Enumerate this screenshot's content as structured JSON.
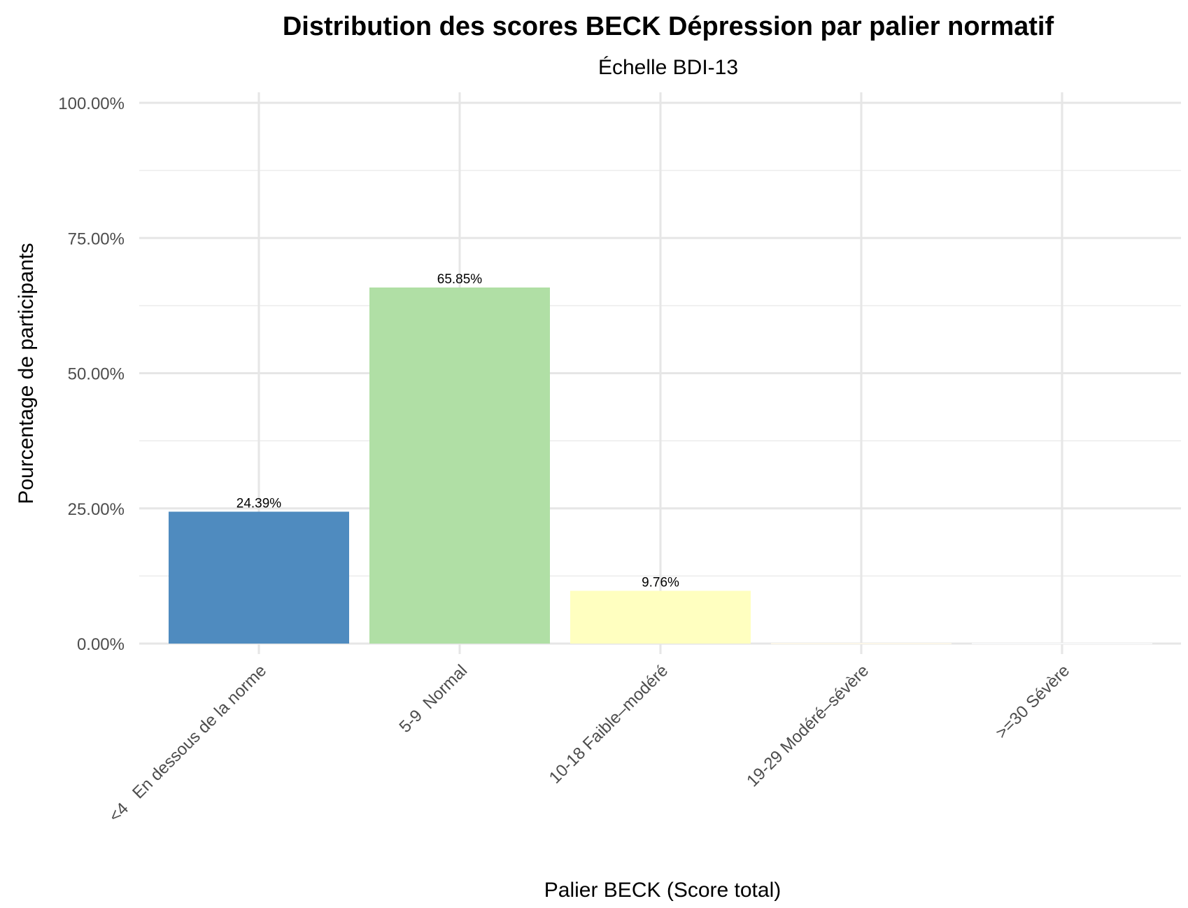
{
  "chart_data": {
    "type": "bar",
    "title": "Distribution des scores BECK Dépression par palier normatif",
    "subtitle": "Échelle BDI-13",
    "xlabel": "Palier BECK (Score total)",
    "ylabel": "Pourcentage de participants",
    "categories": [
      "<4   En dessous de la norme",
      "5-9  Normal",
      "10-18 Faible–modéré",
      "19-29 Modéré–sévère",
      ">=30 Sévère"
    ],
    "values": [
      24.39,
      65.85,
      9.76,
      0,
      0
    ],
    "data_labels": [
      "24.39%",
      "65.85%",
      "9.76%",
      "",
      ""
    ],
    "colors": [
      "#4f8bbf",
      "#b0dfa5",
      "#ffffc0",
      "#fbf6e9",
      "#f6f7f8"
    ],
    "ylim": [
      0,
      100
    ],
    "yticks": [
      0,
      25,
      50,
      75,
      100
    ],
    "ytick_labels": [
      "0.00%",
      "25.00%",
      "50.00%",
      "75.00%",
      "100.00%"
    ],
    "grid": true,
    "legend": "none"
  }
}
